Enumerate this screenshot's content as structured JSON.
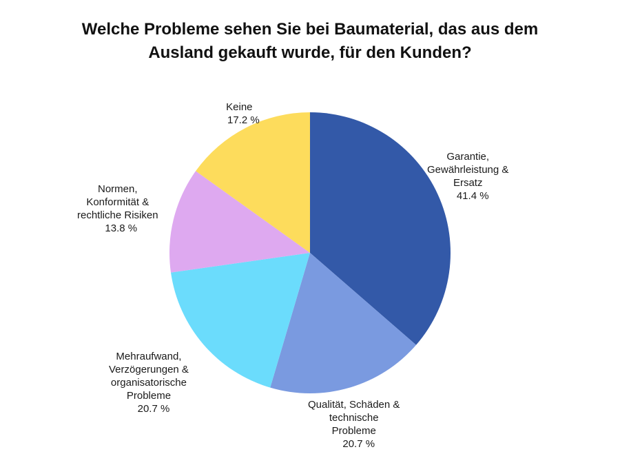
{
  "chart_data": {
    "type": "pie",
    "title": "Welche Probleme sehen Sie bei Baumaterial, das aus dem Ausland gekauft wurde, für den Kunden?",
    "title_lines": [
      "Welche Probleme sehen Sie bei Baumaterial, das aus dem",
      "Ausland gekauft wurde, für den Kunden?"
    ],
    "start_angle_deg": 0,
    "direction": "clockwise",
    "slices": [
      {
        "label": "Garantie, Gewährleistung & Ersatz",
        "label_lines": [
          "Garantie,",
          "Gewährleistung &",
          "Ersatz"
        ],
        "value": 41.4,
        "value_text": "41.4 %",
        "color": "#3359a8"
      },
      {
        "label": "Qualität, Schäden & technische Probleme",
        "label_lines": [
          "Qualität, Schäden &",
          "technische",
          "Probleme"
        ],
        "value": 20.7,
        "value_text": "20.7 %",
        "color": "#7a9ae0"
      },
      {
        "label": "Mehraufwand, Verzögerungen & organisatorische Probleme",
        "label_lines": [
          "Mehraufwand,",
          "Verzögerungen &",
          "organisatorische",
          "Probleme"
        ],
        "value": 20.7,
        "value_text": "20.7 %",
        "color": "#6bdcfc"
      },
      {
        "label": "Normen, Konformität & rechtliche Risiken",
        "label_lines": [
          "Normen,",
          "Konformität &",
          "rechtliche Risiken"
        ],
        "value": 13.8,
        "value_text": "13.8 %",
        "color": "#dea9f0"
      },
      {
        "label": "Keine",
        "label_lines": [
          "Keine"
        ],
        "value": 17.2,
        "value_text": "17.2 %",
        "color": "#fddc5c"
      }
    ]
  }
}
